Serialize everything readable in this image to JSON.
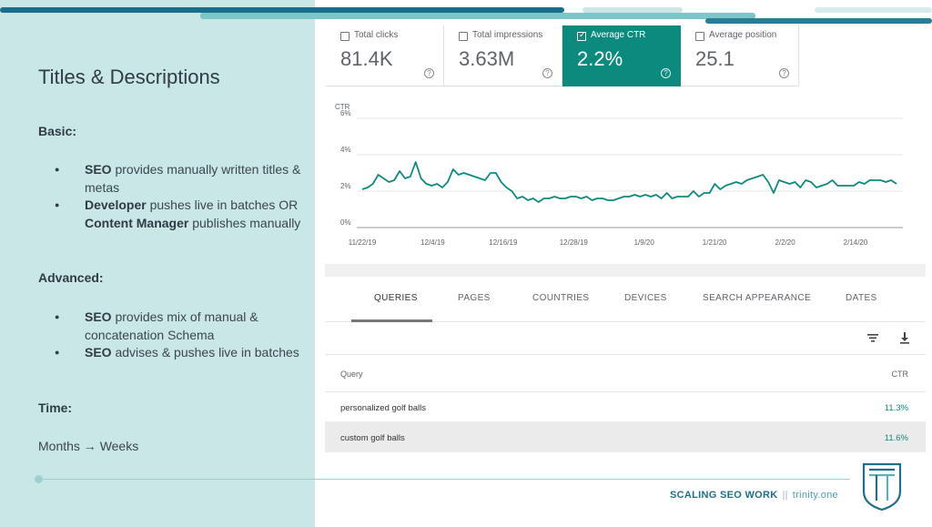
{
  "slide": {
    "title": "Titles & Descriptions",
    "basic_heading": "Basic:",
    "basic_bullets": [
      {
        "strong": "SEO",
        "text": " provides manually written titles & metas"
      },
      {
        "strong": "Developer",
        "text": " pushes live in batches OR ",
        "strong2": "Content Manager",
        "text2": " publishes manually"
      }
    ],
    "advanced_heading": "Advanced:",
    "advanced_bullets": [
      {
        "strong": "SEO",
        "text": " provides mix of manual & concatenation Schema"
      },
      {
        "strong": "SEO",
        "text": " advises & pushes live in batches"
      }
    ],
    "time_heading": "Time:",
    "time_text": "Months → Weeks"
  },
  "metrics": [
    {
      "label": "Total clicks",
      "value": "81.4K",
      "checked": false
    },
    {
      "label": "Total impressions",
      "value": "3.63M",
      "checked": false
    },
    {
      "label": "Average CTR",
      "value": "2.2%",
      "checked": true
    },
    {
      "label": "Average position",
      "value": "25.1",
      "checked": false
    }
  ],
  "chart_data": {
    "type": "line",
    "ylabel": "CTR",
    "y_ticks": [
      "6%",
      "4%",
      "2%",
      "0%"
    ],
    "ylim": [
      0,
      6
    ],
    "x_tick_labels": [
      "11/22/19",
      "12/4/19",
      "12/16/19",
      "12/28/19",
      "1/9/20",
      "1/21/20",
      "2/2/20",
      "2/14/20"
    ],
    "grid": true,
    "color": "#0d8a7e",
    "series": [
      {
        "values": [
          2.1,
          2.2,
          2.4,
          2.9,
          2.7,
          2.5,
          2.6,
          3.1,
          2.7,
          2.8,
          3.6,
          2.7,
          2.4,
          2.3,
          2.4,
          2.2,
          2.5,
          3.2,
          2.9,
          3.0,
          2.9,
          2.8,
          2.7,
          2.6,
          3.0,
          3.0,
          2.5,
          2.2,
          2.0,
          1.6,
          1.7,
          1.5,
          1.6,
          1.4,
          1.6,
          1.6,
          1.7,
          1.6,
          1.6,
          1.7,
          1.7,
          1.6,
          1.7,
          1.5,
          1.6,
          1.6,
          1.5,
          1.5,
          1.6,
          1.7,
          1.7,
          1.8,
          1.7,
          1.8,
          1.7,
          1.8,
          1.6,
          1.9,
          1.6,
          1.7,
          1.7,
          1.7,
          2.0,
          1.7,
          1.9,
          1.9,
          2.4,
          2.1,
          2.3,
          2.4,
          2.5,
          2.4,
          2.6,
          2.7,
          2.8,
          2.9,
          2.5,
          1.9,
          2.6,
          2.5,
          2.4,
          2.5,
          2.2,
          2.6,
          2.5,
          2.2,
          2.3,
          2.4,
          2.6,
          2.3,
          2.3,
          2.3,
          2.3,
          2.5,
          2.4,
          2.6,
          2.6,
          2.6,
          2.5,
          2.6,
          2.4
        ]
      }
    ]
  },
  "tabs": [
    "QUERIES",
    "PAGES",
    "COUNTRIES",
    "DEVICES",
    "SEARCH APPEARANCE",
    "DATES"
  ],
  "table": {
    "headers": {
      "query": "Query",
      "ctr": "CTR"
    },
    "rows": [
      {
        "query": "personalized golf balls",
        "ctr": "11.3%"
      },
      {
        "query": "custom golf balls",
        "ctr": "11.6%"
      }
    ]
  },
  "footer": {
    "brand": "SCALING SEO WORK",
    "separator": "||",
    "site": "trinity.one"
  },
  "icons": {
    "filter": "filter-icon",
    "download": "download-icon",
    "help": "help-circle-icon",
    "logo": "trinity-logo"
  }
}
